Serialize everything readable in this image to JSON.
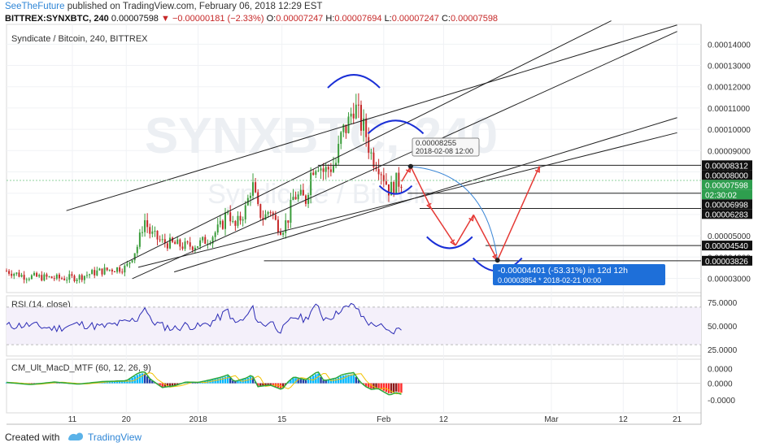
{
  "header": {
    "author": "SeeTheFuture",
    "published": "published on TradingView.com, February 06, 2018 12:29 EST",
    "symbol": "BITTREX:SYNXBTC, 240",
    "last": "0.00007598",
    "change_arrow": "▼",
    "change": "−0.00000181 (−2.33%)",
    "o_label": "O:",
    "o_value": "0.00007247",
    "h_label": "H:",
    "h_value": "0.00007694",
    "l_label": "L:",
    "l_value": "0.00007247",
    "c_label": "C:",
    "c_value": "0.00007598"
  },
  "watermark": {
    "ticker": "SYNXBTC, 240",
    "name": "Syndicate / Bitcoin"
  },
  "chart_data": [
    {
      "type": "candlestick",
      "title": "Syndicate / Bitcoin, 240, BITTREX",
      "ylim": [
        2.33e-05,
        0.0001493
      ],
      "y_ticks": [
        "0.00014000",
        "0.00013000",
        "0.00012000",
        "0.00011000",
        "0.00010000",
        "0.00009000",
        "0.00008000",
        "0.00007000",
        "0.00006000",
        "0.00005000",
        "0.00004000",
        "0.00003000"
      ],
      "y_tick_values": [
        0.00014,
        0.00013,
        0.00012,
        0.00011,
        0.0001,
        9e-05,
        8e-05,
        7e-05,
        6e-05,
        5e-05,
        4e-05,
        3e-05
      ],
      "x_ticks": [
        "11",
        "20",
        "2018",
        "15",
        "Feb",
        "12",
        "Mar",
        "12",
        "21"
      ],
      "x_tick_days": [
        11,
        20,
        32,
        46,
        63,
        73,
        91,
        103,
        112
      ],
      "x_day_range": [
        0,
        116
      ],
      "price_labels": [
        {
          "text": "0.00008312",
          "value": 8.312e-05,
          "style": "dark"
        },
        {
          "text": "0.00008000",
          "value": 8e-05,
          "style": "dark"
        },
        {
          "text": "0.00007598",
          "value": 7.598e-05,
          "style": "green"
        },
        {
          "text": "02:30:02",
          "value": 7.2e-05,
          "style": "green"
        },
        {
          "text": "0.00006998",
          "value": 6.998e-05,
          "style": "dark"
        },
        {
          "text": "0.00006283",
          "value": 6.283e-05,
          "style": "dark"
        },
        {
          "text": "0.00004540",
          "value": 4.54e-05,
          "style": "dark"
        },
        {
          "text": "0.00003826",
          "value": 3.826e-05,
          "style": "dark"
        }
      ],
      "price_series": {
        "points": [
          [
            0,
            3.35e-05
          ],
          [
            3,
            3.1e-05
          ],
          [
            6,
            3.05e-05
          ],
          [
            9,
            3e-05
          ],
          [
            12,
            3.05e-05
          ],
          [
            15,
            3.3e-05
          ],
          [
            18,
            3.45e-05
          ],
          [
            20,
            3.5e-05
          ],
          [
            22,
            4.6e-05
          ],
          [
            23,
            5.8e-05
          ],
          [
            24,
            5.1e-05
          ],
          [
            26,
            4.7e-05
          ],
          [
            28,
            4.6e-05
          ],
          [
            30,
            4.5e-05
          ],
          [
            32,
            4.6e-05
          ],
          [
            34,
            4.9e-05
          ],
          [
            36,
            5.5e-05
          ],
          [
            37,
            6.3e-05
          ],
          [
            38,
            5.3e-05
          ],
          [
            40,
            6.3e-05
          ],
          [
            41,
            7.5e-05
          ],
          [
            42,
            6.2e-05
          ],
          [
            43,
            5.8e-05
          ],
          [
            44,
            6.3e-05
          ],
          [
            45,
            5.6e-05
          ],
          [
            46,
            5.3e-05
          ],
          [
            47,
            5.8e-05
          ],
          [
            48,
            6.9e-05
          ],
          [
            50,
            6.7e-05
          ],
          [
            51,
            8.2e-05
          ],
          [
            52,
            8.5e-05
          ],
          [
            53,
            8e-05
          ],
          [
            55,
            8.4e-05
          ],
          [
            56,
            9.8e-05
          ],
          [
            57,
            0.000102
          ],
          [
            58,
            0.000112
          ],
          [
            59,
            0.000104
          ],
          [
            60,
            9.8e-05
          ],
          [
            61,
            8.7e-05
          ],
          [
            62,
            8.5e-05
          ],
          [
            63,
            7.8e-05
          ],
          [
            64,
            7.1e-05
          ],
          [
            65,
            7.5e-05
          ],
          [
            66,
            7.598e-05
          ]
        ]
      },
      "annotations": {
        "hover_price": "0.00008255",
        "hover_time": "2018-02-08 12:00",
        "measure_line1": "-0.00004401 (-53.31%) in 12d 12h",
        "measure_line2": "0.00003854  *  2018-02-21  00:00"
      }
    },
    {
      "type": "line",
      "title": "RSI (14, close)",
      "ylim": [
        18,
        82
      ],
      "y_ticks": [
        "75.0000",
        "50.0000",
        "25.0000"
      ],
      "y_tick_values": [
        75,
        50,
        25
      ],
      "series": [
        {
          "color": "#2b2bb5",
          "points": [
            [
              0,
              50
            ],
            [
              4,
              51
            ],
            [
              8,
              47
            ],
            [
              12,
              52
            ],
            [
              16,
              49
            ],
            [
              20,
              54
            ],
            [
              22,
              58
            ],
            [
              23,
              72
            ],
            [
              24,
              56
            ],
            [
              26,
              50
            ],
            [
              28,
              47
            ],
            [
              30,
              51
            ],
            [
              32,
              49
            ],
            [
              34,
              53
            ],
            [
              36,
              61
            ],
            [
              37,
              67
            ],
            [
              38,
              52
            ],
            [
              40,
              58
            ],
            [
              41,
              70
            ],
            [
              42,
              55
            ],
            [
              43,
              50
            ],
            [
              44,
              56
            ],
            [
              45,
              49
            ],
            [
              46,
              45
            ],
            [
              47,
              52
            ],
            [
              48,
              60
            ],
            [
              50,
              57
            ],
            [
              51,
              68
            ],
            [
              52,
              70
            ],
            [
              53,
              58
            ],
            [
              55,
              62
            ],
            [
              56,
              70
            ],
            [
              57,
              68
            ],
            [
              58,
              74
            ],
            [
              59,
              62
            ],
            [
              60,
              57
            ],
            [
              61,
              50
            ],
            [
              62,
              53
            ],
            [
              63,
              46
            ],
            [
              64,
              42
            ],
            [
              65,
              45
            ],
            [
              66,
              47
            ]
          ]
        }
      ]
    },
    {
      "type": "bar",
      "title": "CM_Ult_MacD_MTF (60, 12, 26, 9)",
      "ylim": [
        -8e-06,
        6.5e-06
      ],
      "y_ticks": [
        "0.0000",
        "0.0000",
        "-0.0000"
      ],
      "y_tick_values": [
        4e-06,
        0.0,
        -4.5e-06
      ],
      "histogram": [
        [
          0,
          2e-07
        ],
        [
          4,
          -3e-07
        ],
        [
          8,
          3e-07
        ],
        [
          12,
          -2e-07
        ],
        [
          16,
          4e-07
        ],
        [
          20,
          6e-07
        ],
        [
          22,
          2.4e-06
        ],
        [
          23,
          2.8e-06
        ],
        [
          24,
          1e-06
        ],
        [
          26,
          -1e-06
        ],
        [
          28,
          -6e-07
        ],
        [
          30,
          3e-07
        ],
        [
          32,
          2e-07
        ],
        [
          34,
          8e-07
        ],
        [
          36,
          1.5e-06
        ],
        [
          37,
          2e-06
        ],
        [
          38,
          4e-07
        ],
        [
          40,
          1.2e-06
        ],
        [
          41,
          2e-06
        ],
        [
          42,
          -8e-07
        ],
        [
          44,
          -4e-07
        ],
        [
          46,
          -1.5e-06
        ],
        [
          47,
          3e-07
        ],
        [
          48,
          1.5e-06
        ],
        [
          50,
          8e-07
        ],
        [
          51,
          1.8e-06
        ],
        [
          52,
          2.8e-06
        ],
        [
          53,
          6e-07
        ],
        [
          55,
          1.2e-06
        ],
        [
          56,
          2e-06
        ],
        [
          57,
          2.3e-06
        ],
        [
          58,
          2.5e-06
        ],
        [
          59,
          4e-07
        ],
        [
          60,
          -8e-07
        ],
        [
          61,
          -1.5e-06
        ],
        [
          62,
          -1.2e-06
        ],
        [
          63,
          -2e-06
        ],
        [
          64,
          -2.8e-06
        ],
        [
          65,
          -2.2e-06
        ],
        [
          66,
          -2.6e-06
        ]
      ]
    }
  ],
  "footer": {
    "created": "Created with",
    "brand": "TradingView"
  },
  "colors": {
    "up": "#3a9c3a",
    "down": "#c62828",
    "projection": "#e53935",
    "arcs": "#1a2fd6",
    "rsi": "#2b2bb5",
    "measure": "#1e6fd9"
  }
}
